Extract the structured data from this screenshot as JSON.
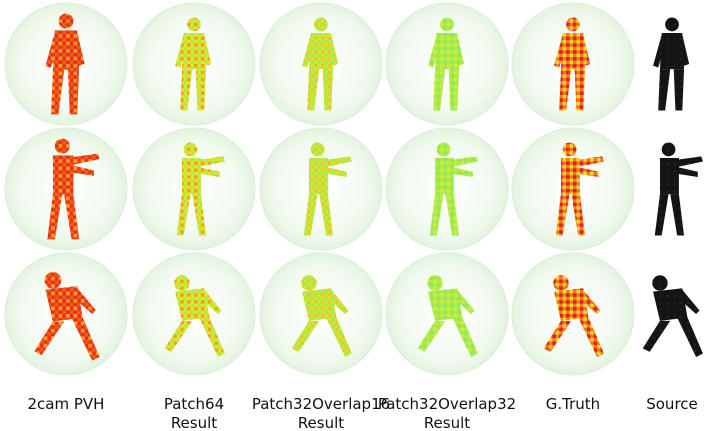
{
  "columns": [
    {
      "label": [
        "2cam PVH"
      ]
    },
    {
      "label": [
        "Patch64",
        "Result"
      ]
    },
    {
      "label": [
        "Patch32Overlap16",
        "Result"
      ]
    },
    {
      "label": [
        "Patch32Overlap32",
        "Result"
      ]
    },
    {
      "label": [
        "G.Truth"
      ]
    },
    {
      "label": [
        "Source"
      ]
    }
  ]
}
